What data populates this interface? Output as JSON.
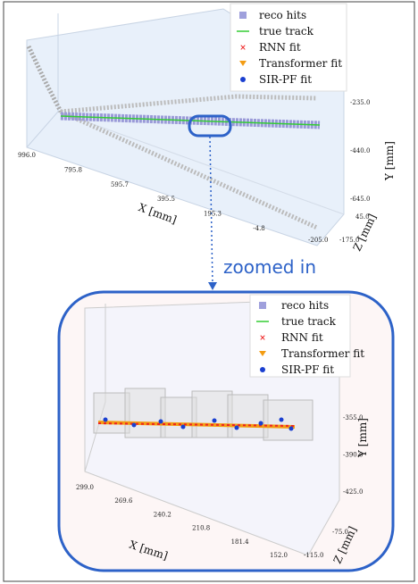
{
  "panels": [
    {
      "legend": [
        "reco hits",
        "true track",
        "RNN fit",
        "Transformer fit",
        "SIR-PF fit"
      ],
      "x_axis": {
        "label": "X [mm]",
        "ticks": [
          "996.0",
          "795.8",
          "595.7",
          "395.5",
          "195.3",
          "-4.8"
        ]
      },
      "y_axis": {
        "label": "Y [mm]",
        "ticks": [
          "-235.0",
          "-440.0",
          "-645.0"
        ]
      },
      "z_axis": {
        "label": "Z [mm]",
        "ticks": [
          "45.0",
          "-175.0",
          "-205.0"
        ]
      }
    },
    {
      "legend": [
        "reco hits",
        "true track",
        "RNN fit",
        "Transformer fit",
        "SIR-PF fit"
      ],
      "x_axis": {
        "label": "X [mm]",
        "ticks": [
          "299.0",
          "269.6",
          "240.2",
          "210.8",
          "181.4",
          "152.0"
        ]
      },
      "y_axis": {
        "label": "Y [mm]",
        "ticks": [
          "-355.0",
          "-390.0",
          "-425.0"
        ]
      },
      "z_axis": {
        "label": "Z [mm]",
        "ticks": [
          "-75.0",
          "-115.0"
        ]
      }
    }
  ],
  "callout": "zoomed in"
}
